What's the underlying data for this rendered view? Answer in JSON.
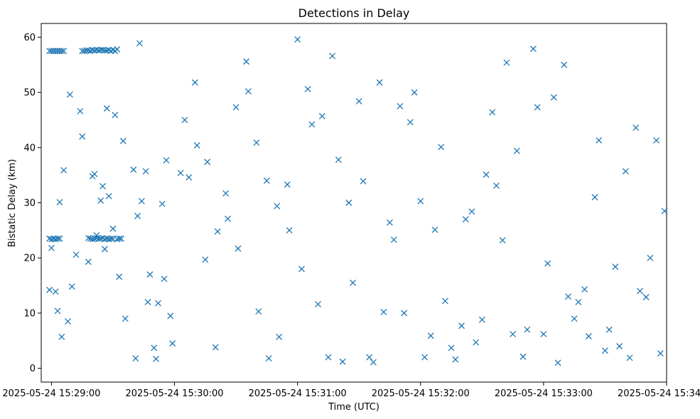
{
  "chart_data": {
    "type": "scatter",
    "title": "Detections in Delay",
    "xlabel": "Time (UTC)",
    "ylabel": "Bistatic Delay (km)",
    "x_axis_kind": "datetime",
    "xlim": [
      "2025-05-24 15:28:55",
      "2025-05-24 15:34:00"
    ],
    "ylim": [
      -2.5,
      62.5
    ],
    "x_ticks": [
      "2025-05-24 15:29:00",
      "2025-05-24 15:30:00",
      "2025-05-24 15:31:00",
      "2025-05-24 15:32:00",
      "2025-05-24 15:33:00",
      "2025-05-24 15:34:00"
    ],
    "y_ticks": [
      0,
      10,
      20,
      30,
      40,
      50,
      60
    ],
    "grid": false,
    "legend": "none",
    "marker": "x",
    "color": "#1f77b4",
    "series": [
      {
        "x": [
          "2025-05-24 15:28:59",
          "2025-05-24 15:29:00",
          "2025-05-24 15:29:01",
          "2025-05-24 15:29:02",
          "2025-05-24 15:29:03",
          "2025-05-24 15:29:04",
          "2025-05-24 15:29:05",
          "2025-05-24 15:29:06",
          "2025-05-24 15:29:15",
          "2025-05-24 15:29:16",
          "2025-05-24 15:29:17",
          "2025-05-24 15:29:18",
          "2025-05-24 15:29:19",
          "2025-05-24 15:29:20",
          "2025-05-24 15:29:21",
          "2025-05-24 15:29:22",
          "2025-05-24 15:29:23",
          "2025-05-24 15:29:24",
          "2025-05-24 15:29:25",
          "2025-05-24 15:29:26",
          "2025-05-24 15:29:27",
          "2025-05-24 15:29:28",
          "2025-05-24 15:29:29",
          "2025-05-24 15:29:30",
          "2025-05-24 15:29:31",
          "2025-05-24 15:29:32",
          "2025-05-24 15:28:59",
          "2025-05-24 15:29:00",
          "2025-05-24 15:29:01",
          "2025-05-24 15:29:02",
          "2025-05-24 15:29:03",
          "2025-05-24 15:29:04",
          "2025-05-24 15:29:18",
          "2025-05-24 15:29:19",
          "2025-05-24 15:29:20",
          "2025-05-24 15:29:21",
          "2025-05-24 15:29:22",
          "2025-05-24 15:29:23",
          "2025-05-24 15:29:24",
          "2025-05-24 15:29:25",
          "2025-05-24 15:29:26",
          "2025-05-24 15:29:27",
          "2025-05-24 15:29:28",
          "2025-05-24 15:29:29",
          "2025-05-24 15:29:30",
          "2025-05-24 15:29:32",
          "2025-05-24 15:29:33",
          "2025-05-24 15:29:34",
          "2025-05-24 15:28:59",
          "2025-05-24 15:29:00",
          "2025-05-24 15:29:02",
          "2025-05-24 15:29:03",
          "2025-05-24 15:29:04",
          "2025-05-24 15:29:05",
          "2025-05-24 15:29:06",
          "2025-05-24 15:29:08",
          "2025-05-24 15:29:09",
          "2025-05-24 15:29:10",
          "2025-05-24 15:29:12",
          "2025-05-24 15:29:14",
          "2025-05-24 15:29:15",
          "2025-05-24 15:29:18",
          "2025-05-24 15:29:20",
          "2025-05-24 15:29:21",
          "2025-05-24 15:29:22",
          "2025-05-24 15:29:24",
          "2025-05-24 15:29:25",
          "2025-05-24 15:29:26",
          "2025-05-24 15:29:27",
          "2025-05-24 15:29:28",
          "2025-05-24 15:29:30",
          "2025-05-24 15:29:31",
          "2025-05-24 15:29:33",
          "2025-05-24 15:29:35",
          "2025-05-24 15:29:36",
          "2025-05-24 15:29:40",
          "2025-05-24 15:29:42",
          "2025-05-24 15:29:44",
          "2025-05-24 15:29:46",
          "2025-05-24 15:29:48",
          "2025-05-24 15:29:50",
          "2025-05-24 15:29:52",
          "2025-05-24 15:29:54",
          "2025-05-24 15:29:56",
          "2025-05-24 15:29:58",
          "2025-05-24 15:30:05",
          "2025-05-24 15:30:10",
          "2025-05-24 15:30:15",
          "2025-05-24 15:30:20",
          "2025-05-24 15:30:25",
          "2025-05-24 15:30:30",
          "2025-05-24 15:30:35",
          "2025-05-24 15:30:40",
          "2025-05-24 15:30:45",
          "2025-05-24 15:30:50",
          "2025-05-24 15:30:55",
          "2025-05-24 15:29:41",
          "2025-05-24 15:29:43",
          "2025-05-24 15:29:47",
          "2025-05-24 15:29:51",
          "2025-05-24 15:29:55",
          "2025-05-24 15:29:59",
          "2025-05-24 15:30:03",
          "2025-05-24 15:30:07",
          "2025-05-24 15:30:11",
          "2025-05-24 15:30:16",
          "2025-05-24 15:30:21",
          "2025-05-24 15:30:26",
          "2025-05-24 15:30:31",
          "2025-05-24 15:30:36",
          "2025-05-24 15:30:41",
          "2025-05-24 15:30:46",
          "2025-05-24 15:30:51",
          "2025-05-24 15:30:56",
          "2025-05-24 15:31:00",
          "2025-05-24 15:31:05",
          "2025-05-24 15:31:10",
          "2025-05-24 15:31:15",
          "2025-05-24 15:31:20",
          "2025-05-24 15:31:25",
          "2025-05-24 15:31:30",
          "2025-05-24 15:31:35",
          "2025-05-24 15:31:40",
          "2025-05-24 15:31:45",
          "2025-05-24 15:31:50",
          "2025-05-24 15:31:55",
          "2025-05-24 15:31:02",
          "2025-05-24 15:31:07",
          "2025-05-24 15:31:12",
          "2025-05-24 15:31:17",
          "2025-05-24 15:31:22",
          "2025-05-24 15:31:27",
          "2025-05-24 15:31:32",
          "2025-05-24 15:31:37",
          "2025-05-24 15:31:42",
          "2025-05-24 15:31:47",
          "2025-05-24 15:31:52",
          "2025-05-24 15:31:57",
          "2025-05-24 15:32:00",
          "2025-05-24 15:32:05",
          "2025-05-24 15:32:10",
          "2025-05-24 15:32:15",
          "2025-05-24 15:32:20",
          "2025-05-24 15:32:25",
          "2025-05-24 15:32:30",
          "2025-05-24 15:32:35",
          "2025-05-24 15:32:40",
          "2025-05-24 15:32:45",
          "2025-05-24 15:32:50",
          "2025-05-24 15:32:55",
          "2025-05-24 15:32:02",
          "2025-05-24 15:32:07",
          "2025-05-24 15:32:12",
          "2025-05-24 15:32:17",
          "2025-05-24 15:32:22",
          "2025-05-24 15:32:27",
          "2025-05-24 15:32:32",
          "2025-05-24 15:32:37",
          "2025-05-24 15:32:42",
          "2025-05-24 15:32:47",
          "2025-05-24 15:32:52",
          "2025-05-24 15:32:57",
          "2025-05-24 15:33:00",
          "2025-05-24 15:33:05",
          "2025-05-24 15:33:10",
          "2025-05-24 15:33:15",
          "2025-05-24 15:33:20",
          "2025-05-24 15:33:25",
          "2025-05-24 15:33:30",
          "2025-05-24 15:33:35",
          "2025-05-24 15:33:40",
          "2025-05-24 15:33:45",
          "2025-05-24 15:33:50",
          "2025-05-24 15:33:55",
          "2025-05-24 15:33:59",
          "2025-05-24 15:33:02",
          "2025-05-24 15:33:07",
          "2025-05-24 15:33:12",
          "2025-05-24 15:33:17",
          "2025-05-24 15:33:22",
          "2025-05-24 15:33:27",
          "2025-05-24 15:33:32",
          "2025-05-24 15:33:37",
          "2025-05-24 15:33:42",
          "2025-05-24 15:33:47",
          "2025-05-24 15:33:52",
          "2025-05-24 15:33:57"
        ],
        "y": [
          57.5,
          57.5,
          57.5,
          57.5,
          57.5,
          57.5,
          57.5,
          57.5,
          57.5,
          57.5,
          57.6,
          57.6,
          57.5,
          57.7,
          57.6,
          57.7,
          57.6,
          57.7,
          57.7,
          57.6,
          57.6,
          57.7,
          57.5,
          57.7,
          57.5,
          57.8,
          23.5,
          23.4,
          23.5,
          23.4,
          23.5,
          23.5,
          23.6,
          23.5,
          23.4,
          23.5,
          23.6,
          23.5,
          23.5,
          23.6,
          23.4,
          23.5,
          23.4,
          23.5,
          23.5,
          23.4,
          23.5,
          23.5,
          14.2,
          21.8,
          13.9,
          10.4,
          30.1,
          5.7,
          35.9,
          8.5,
          49.6,
          14.8,
          20.6,
          46.6,
          42.0,
          19.3,
          34.8,
          35.2,
          24.1,
          30.4,
          33.0,
          21.6,
          47.1,
          31.2,
          25.3,
          45.9,
          16.6,
          41.2,
          9.0,
          36.0,
          27.6,
          30.3,
          35.7,
          17.0,
          3.7,
          11.8,
          29.8,
          37.7,
          9.5,
          45.0,
          51.8,
          19.7,
          3.8,
          31.7,
          47.3,
          55.6,
          40.9,
          34.0,
          29.4,
          33.3,
          1.8,
          58.9,
          12.0,
          1.7,
          16.2,
          4.5,
          35.4,
          34.6,
          40.4,
          37.4,
          24.8,
          27.1,
          21.7,
          50.2,
          10.3,
          1.8,
          5.7,
          25.0,
          59.6,
          50.6,
          11.6,
          2.0,
          37.8,
          30.0,
          48.4,
          2.0,
          51.8,
          26.4,
          47.5,
          44.6,
          18.0,
          44.2,
          45.7,
          56.6,
          1.2,
          15.5,
          33.9,
          1.1,
          10.2,
          23.3,
          10.0,
          50.0,
          30.3,
          5.9,
          40.1,
          3.7,
          7.7,
          28.4,
          8.8,
          46.4,
          23.2,
          6.2,
          2.1,
          57.9,
          2.0,
          25.1,
          12.2,
          1.6,
          27.0,
          4.7,
          35.1,
          33.1,
          55.4,
          39.4,
          7.0,
          47.3,
          6.2,
          49.1,
          55.0,
          9.0,
          14.3,
          31.0,
          3.2,
          18.4,
          35.7,
          43.6,
          12.9,
          41.3,
          28.5,
          19.0,
          1.0,
          13.0,
          12.0,
          5.8,
          41.3,
          7.0,
          4.0,
          1.9,
          14.0,
          20.0,
          2.7
        ]
      }
    ]
  }
}
